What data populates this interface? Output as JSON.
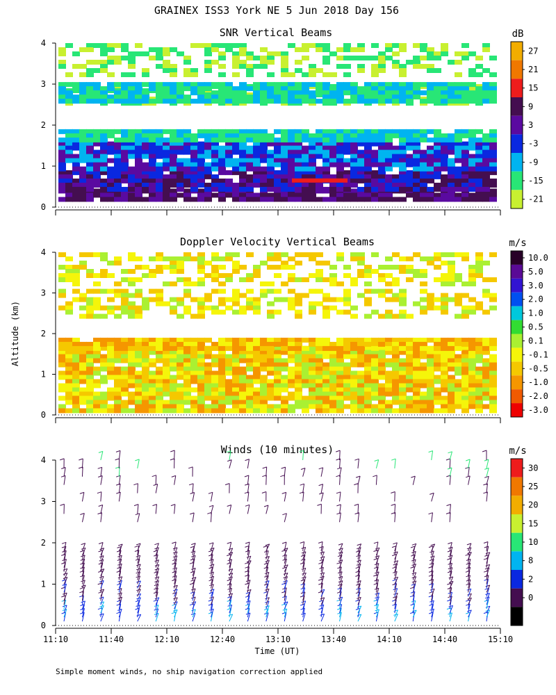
{
  "figure": {
    "title": "GRAINEX ISS3 York NE   5 Jun 2018 Day 156",
    "xlabel": "Time (UT)",
    "ylabel": "Altitude (km)",
    "footnote": "Simple moment winds, no ship navigation correction applied"
  },
  "chart_data": [
    {
      "type": "heatmap",
      "title": "SNR Vertical Beams",
      "unit": "dB",
      "x_ticks": [
        "11:10",
        "11:40",
        "12:10",
        "12:40",
        "13:10",
        "13:40",
        "14:10",
        "14:40",
        "15:10"
      ],
      "y_ticks": [
        "0",
        "1",
        "2",
        "3",
        "4"
      ],
      "ylim": [
        0,
        4
      ],
      "colorbar": {
        "labels": [
          "27",
          "21",
          "15",
          "9",
          "3",
          "-3",
          "-9",
          "-15",
          "-21"
        ],
        "colors": [
          "#f2ad00",
          "#f07800",
          "#ee1c1c",
          "#440e50",
          "#5a0aa0",
          "#0a28e0",
          "#00b4f0",
          "#28e676",
          "#c8f030"
        ]
      },
      "layers": [
        {
          "name": "low",
          "alt": [
            0.15,
            0.45
          ],
          "value": 9
        },
        {
          "name": "dark",
          "alt": [
            0.45,
            0.9
          ],
          "value": 6
        },
        {
          "name": "blue",
          "alt": [
            0.9,
            1.6
          ],
          "value": -3
        },
        {
          "name": "cyan",
          "alt": [
            1.6,
            1.9
          ],
          "value": -9
        },
        {
          "name": "green",
          "alt": [
            2.5,
            3.0
          ],
          "value": -15
        },
        {
          "name": "cyan-upper",
          "alt": [
            2.6,
            3.05
          ],
          "value": -9
        },
        {
          "name": "top",
          "alt": [
            3.2,
            4.0
          ],
          "value": -21
        }
      ]
    },
    {
      "type": "heatmap",
      "title": "Doppler Velocity Vertical Beams",
      "unit": "m/s",
      "x_ticks": [
        "11:10",
        "11:40",
        "12:10",
        "12:40",
        "13:10",
        "13:40",
        "14:10",
        "14:40",
        "15:10"
      ],
      "y_ticks": [
        "0",
        "1",
        "2",
        "3",
        "4"
      ],
      "ylim": [
        0,
        4
      ],
      "colorbar": {
        "labels": [
          "10.0",
          "5.0",
          "3.0",
          "2.0",
          "1.0",
          "0.5",
          "0.1",
          "-0.1",
          "-0.5",
          "-1.0",
          "-2.0",
          "-3.0"
        ],
        "colors": [
          "#280028",
          "#5a0a96",
          "#3214d2",
          "#0050f0",
          "#00c8dc",
          "#32dc32",
          "#aaf032",
          "#f5f50a",
          "#f5c800",
          "#f59600",
          "#f05a00",
          "#ee0000"
        ]
      },
      "layers": [
        {
          "name": "boundary",
          "alt": [
            0.15,
            1.7
          ],
          "value": -0.1
        },
        {
          "name": "mid",
          "alt": [
            1.6,
            1.9
          ],
          "value": -0.5
        },
        {
          "name": "upper",
          "alt": [
            2.4,
            3.1
          ],
          "value": -0.1
        },
        {
          "name": "top",
          "alt": [
            3.2,
            4.0
          ],
          "value": 0.1
        }
      ]
    },
    {
      "type": "barbs",
      "title": "Winds (10 minutes)",
      "unit": "m/s",
      "x_ticks": [
        "11:10",
        "11:40",
        "12:10",
        "12:40",
        "13:10",
        "13:40",
        "14:10",
        "14:40",
        "15:10"
      ],
      "y_ticks": [
        "0",
        "1",
        "2",
        "3",
        "4"
      ],
      "ylim": [
        0,
        4
      ],
      "colorbar": {
        "labels": [
          "30",
          "25",
          "20",
          "15",
          "10",
          "8",
          "2",
          "0"
        ],
        "colors": [
          "#ee1c1c",
          "#f07800",
          "#f2ad00",
          "#c8f030",
          "#28e676",
          "#00b4f0",
          "#0a28e0",
          "#440e50",
          "#000000"
        ]
      },
      "profile_count": 24,
      "barb_altitudes_km": [
        0.1,
        0.2,
        0.3,
        0.4,
        0.5,
        0.6,
        0.7,
        0.8,
        0.9,
        1.0,
        1.1,
        1.2,
        1.3,
        1.4,
        1.5,
        1.6,
        1.7,
        1.8,
        2.5,
        2.7,
        3.0,
        3.2,
        3.4,
        3.6,
        3.8,
        4.0
      ]
    }
  ]
}
